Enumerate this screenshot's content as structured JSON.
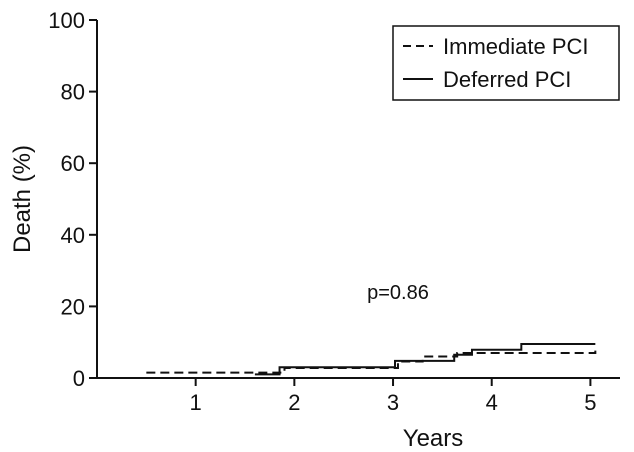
{
  "chart_data": {
    "type": "line",
    "chart_style": "step",
    "title": "",
    "xlabel": "Years",
    "ylabel": "Death (%)",
    "xlim": [
      0,
      5.3
    ],
    "ylim": [
      0,
      100
    ],
    "x_ticks": [
      1,
      2,
      3,
      4,
      5
    ],
    "y_ticks": [
      0,
      20,
      40,
      60,
      80,
      100
    ],
    "grid": false,
    "legend_position": "top-right",
    "annotation": "p=0.86",
    "series": [
      {
        "name": "Immediate PCI",
        "line_style": "dashed",
        "color": "#111111",
        "x": [
          0.5,
          1.75,
          1.9,
          2.95,
          3.05,
          3.3,
          3.65,
          4.05,
          4.45,
          4.98,
          5.05
        ],
        "y": [
          1.5,
          1.5,
          2.8,
          2.8,
          4.6,
          6.0,
          7.0,
          7.0,
          7.0,
          7.0,
          8.5
        ]
      },
      {
        "name": "Deferred PCI",
        "line_style": "solid",
        "color": "#111111",
        "x": [
          1.6,
          1.85,
          2.95,
          3.02,
          3.5,
          3.62,
          3.8,
          4.3,
          5.05
        ],
        "y": [
          1.0,
          3.0,
          3.0,
          4.8,
          4.8,
          6.5,
          7.9,
          9.5,
          9.5
        ]
      }
    ]
  }
}
